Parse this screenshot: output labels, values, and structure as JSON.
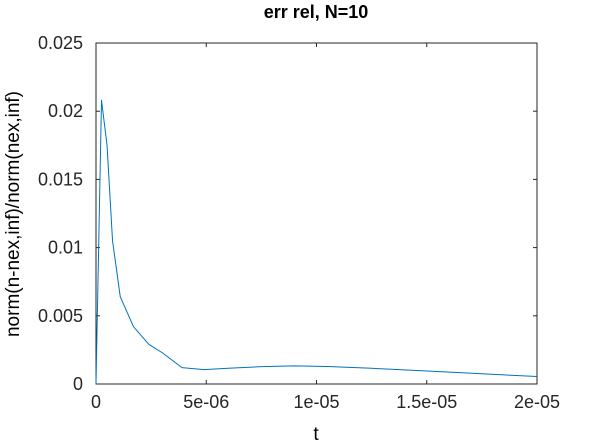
{
  "chart_data": {
    "type": "line",
    "title": "err rel, N=10",
    "xlabel": "t",
    "ylabel": "norm(n-nex,inf)/norm(nex,inf)",
    "xlim": [
      0,
      2e-05
    ],
    "ylim": [
      0,
      0.025
    ],
    "xticks": [
      0,
      5e-06,
      1e-05,
      1.5e-05,
      2e-05
    ],
    "xtick_labels": [
      "0",
      "5e-06",
      "1e-05",
      "1.5e-05",
      "2e-05"
    ],
    "yticks": [
      0,
      0.005,
      0.01,
      0.015,
      0.02,
      0.025
    ],
    "ytick_labels": [
      "0",
      "0.005",
      "0.01",
      "0.015",
      "0.02",
      "0.025"
    ],
    "grid": false,
    "line_color": "#0072BD",
    "series": [
      {
        "x": [
          0,
          2.5e-07,
          5e-07,
          7.5e-07,
          1.1e-06,
          1.7e-06,
          2.4e-06,
          3e-06,
          3.9e-06,
          4.9e-06,
          6e-06,
          7.5e-06,
          9e-06,
          1.05e-05,
          1.25e-05,
          1.5e-05,
          1.75e-05,
          2e-05
        ],
        "y": [
          0,
          0.0208,
          0.0175,
          0.0105,
          0.0064,
          0.0042,
          0.0029,
          0.0023,
          0.0012,
          0.00105,
          0.00115,
          0.00127,
          0.00133,
          0.00128,
          0.00115,
          0.00095,
          0.00075,
          0.00055
        ]
      }
    ]
  }
}
